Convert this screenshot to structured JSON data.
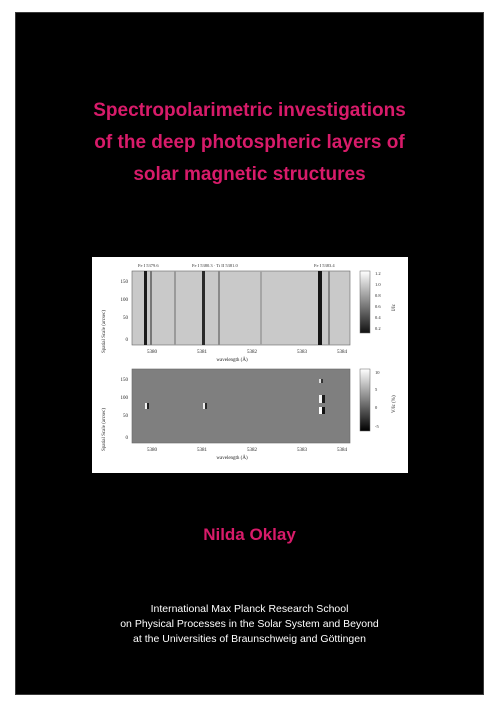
{
  "cover": {
    "title_lines": [
      "Spectropolarimetric investigations",
      "of the deep photospheric layers of",
      "solar magnetic structures"
    ],
    "author": "Nilda Oklay",
    "institution_lines": [
      "International Max Planck Research School",
      "on Physical Processes in the Solar System and Beyond",
      "at the Universities of Braunschweig and Göttingen"
    ],
    "colors": {
      "background": "#000000",
      "title": "#d81b6a",
      "text": "#ffffff"
    }
  },
  "figure": {
    "top_panel": {
      "annotations": [
        "Fe I 5379.6",
        "Fe I 5380.3 · Ti II 5381.0",
        "Fe I 5383.4"
      ],
      "ylabel": "Spatial Scale (arcsec)",
      "yticks": [
        "150",
        "100",
        "50",
        "0"
      ],
      "xticks": [
        "5380",
        "5381",
        "5382",
        "5383",
        "5384"
      ],
      "xlabel": "wavelength (Å)",
      "colorbar_ticks": [
        "1.2",
        "1.0",
        "0.8",
        "0.6",
        "0.4",
        "0.2"
      ],
      "colorbar_label": "I/Ic"
    },
    "bottom_panel": {
      "ylabel": "Spatial Scale (arcsec)",
      "yticks": [
        "150",
        "100",
        "50",
        "0"
      ],
      "xticks": [
        "5380",
        "5381",
        "5382",
        "5383",
        "5384"
      ],
      "xlabel": "wavelength (Å)",
      "colorbar_ticks": [
        "10",
        "5",
        "0",
        "-5"
      ],
      "colorbar_label": "V/Ic (%)"
    }
  }
}
